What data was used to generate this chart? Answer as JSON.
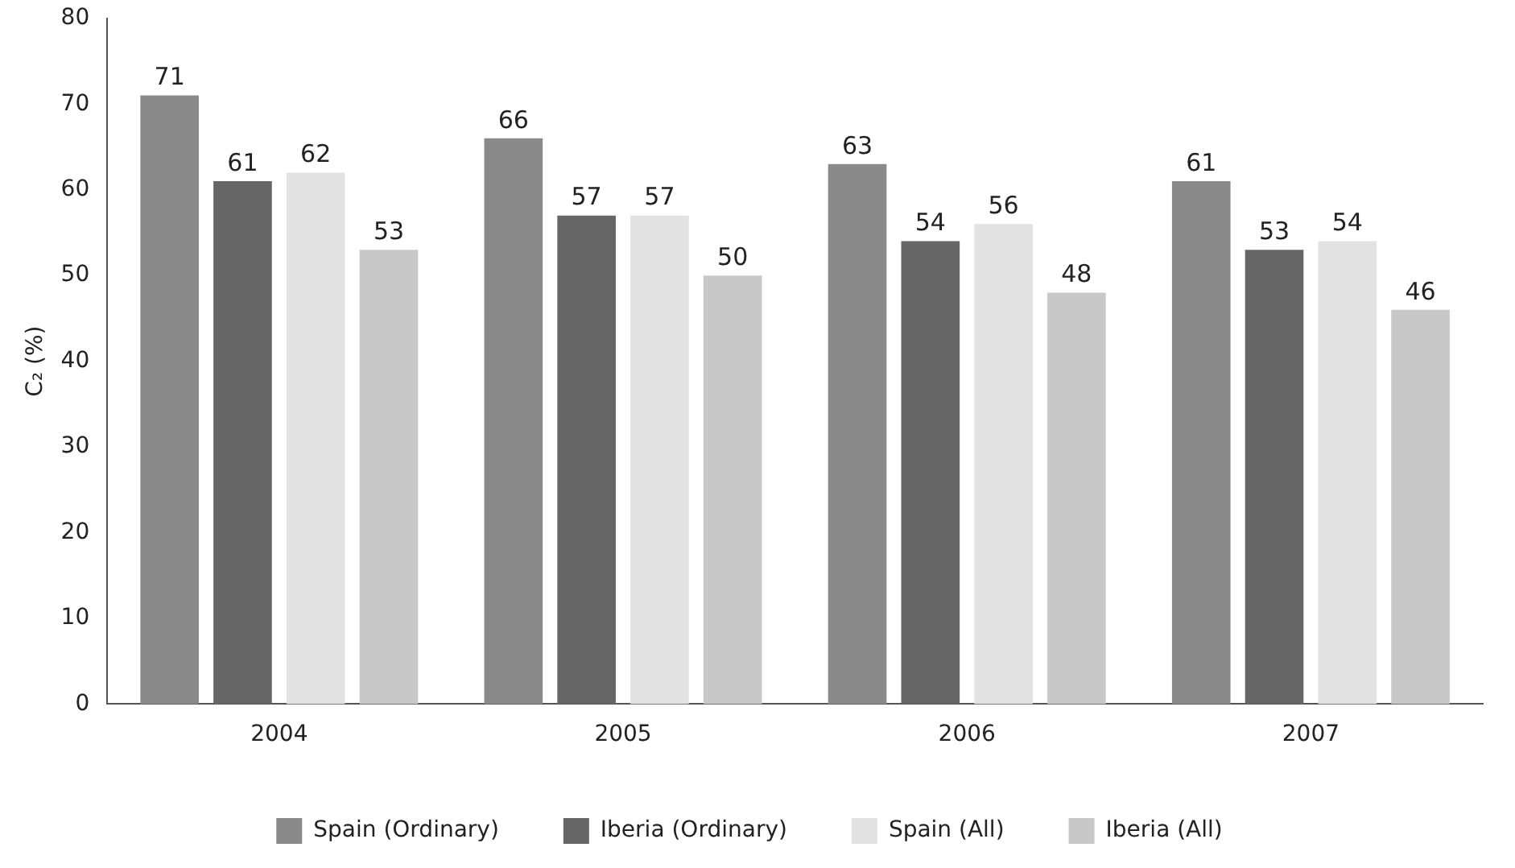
{
  "chart_data": {
    "type": "bar",
    "ylabel": "C₂ (%)",
    "categories": [
      "2004",
      "2005",
      "2006",
      "2007"
    ],
    "series": [
      {
        "name": "Spain (Ordinary)",
        "color": "#8a8a8a",
        "values": [
          71,
          66,
          63,
          61
        ]
      },
      {
        "name": "Iberia (Ordinary)",
        "color": "#666666",
        "values": [
          61,
          57,
          54,
          53
        ]
      },
      {
        "name": "Spain (All)",
        "color": "#e2e2e2",
        "values": [
          62,
          57,
          56,
          54
        ]
      },
      {
        "name": "Iberia (All)",
        "color": "#c8c8c8",
        "values": [
          53,
          50,
          48,
          46
        ]
      }
    ],
    "ylim": [
      0,
      80
    ],
    "yticks": [
      0,
      10,
      20,
      30,
      40,
      50,
      60,
      70,
      80
    ],
    "grid": false,
    "legend": "bottom",
    "data_labels": true
  }
}
